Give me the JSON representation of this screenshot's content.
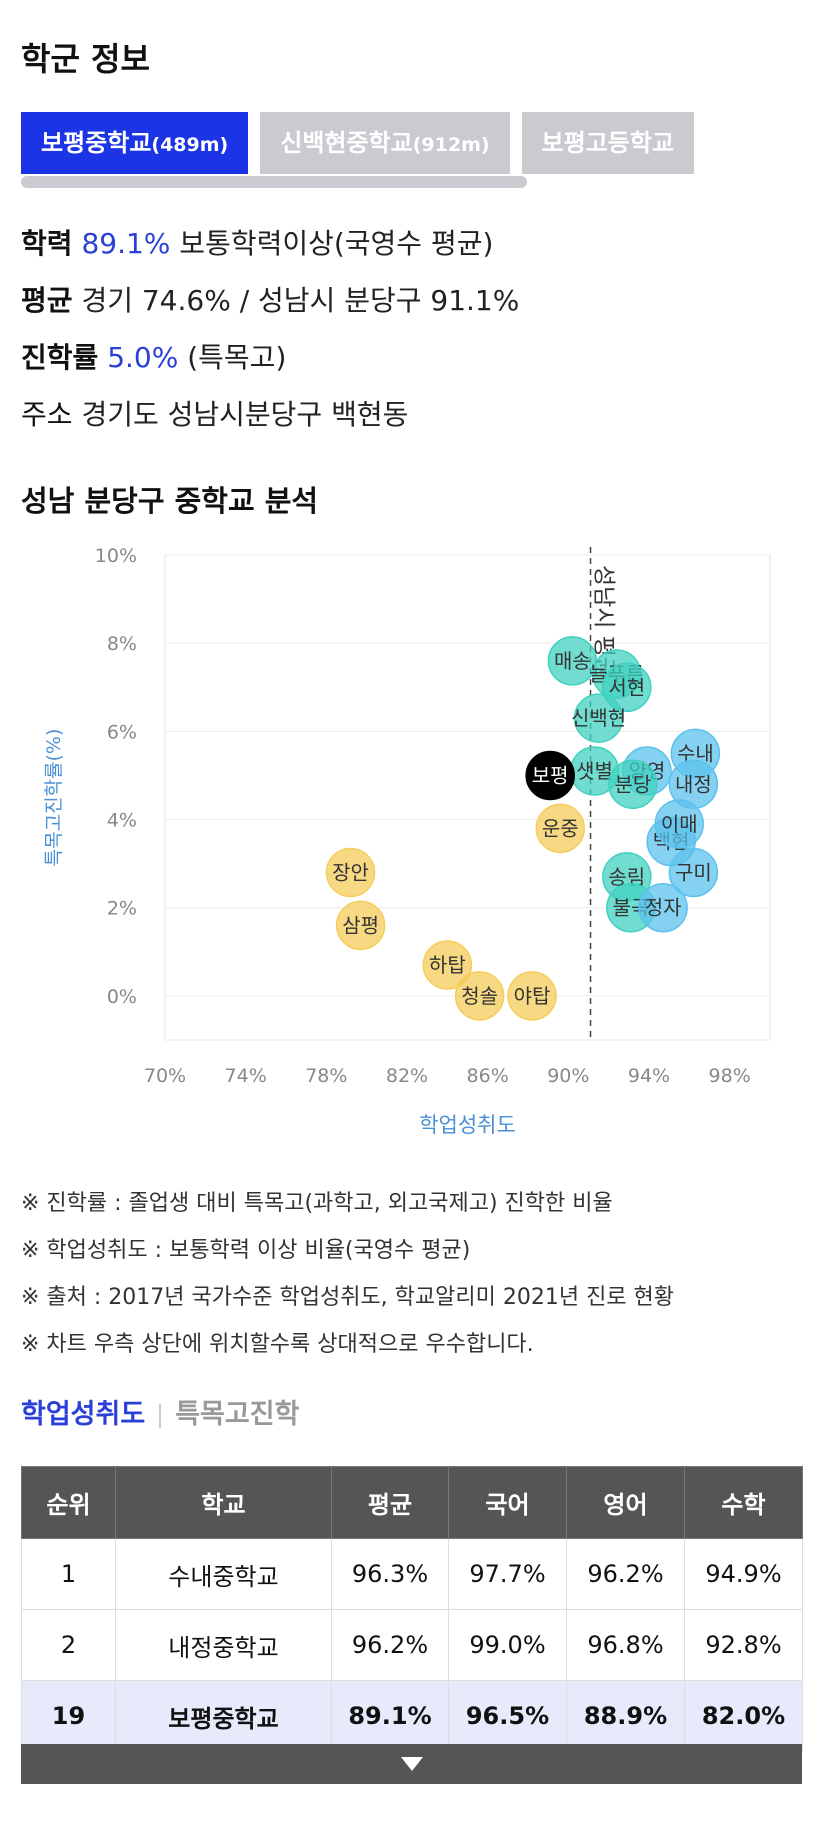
{
  "page_title": "학군 정보",
  "school_tabs": [
    {
      "name": "보평중학교",
      "dist": "(489m)",
      "active": true
    },
    {
      "name": "신백현중학교",
      "dist": "(912m)",
      "active": false
    },
    {
      "name": "보평고등학교",
      "dist": "",
      "active": false
    }
  ],
  "info": {
    "academic": {
      "label": "학력",
      "value": "89.1%",
      "desc": "보통학력이상(국영수 평균)"
    },
    "average": {
      "label": "평균",
      "text": "경기 74.6% / 성남시 분당구 91.1%"
    },
    "advancement": {
      "label": "진학률",
      "value": "5.0%",
      "desc": "(특목고)"
    },
    "address": {
      "label": "주소",
      "text": "경기도 성남시분당구 백현동"
    }
  },
  "section_title": "성남 분당구 중학교 분석",
  "chart_data": {
    "type": "scatter",
    "xlabel": "학업성취도",
    "ylabel": "특목고진학률(%)",
    "xlim": [
      70,
      100
    ],
    "ylim": [
      -1,
      10
    ],
    "x_ticks": [
      70,
      74,
      78,
      82,
      86,
      90,
      94,
      98
    ],
    "x_tick_labels": [
      "70%",
      "74%",
      "78%",
      "82%",
      "86%",
      "90%",
      "94%",
      "98%"
    ],
    "y_ticks": [
      0,
      2,
      4,
      6,
      8,
      10
    ],
    "y_tick_labels": [
      "0%",
      "2%",
      "4%",
      "6%",
      "8%",
      "10%"
    ],
    "reference_line": {
      "x": 91.1,
      "label": "성남시 평균"
    },
    "colors": {
      "low": "#f6cc5a",
      "mid": "#40d1c0",
      "high": "#5cc2ec",
      "selected": "#000000"
    },
    "points": [
      {
        "label": "장안",
        "x": 79.2,
        "y": 2.8,
        "group": "low"
      },
      {
        "label": "삼평",
        "x": 79.7,
        "y": 1.6,
        "group": "low"
      },
      {
        "label": "하탑",
        "x": 84.0,
        "y": 0.7,
        "group": "low"
      },
      {
        "label": "청솔",
        "x": 85.6,
        "y": 0.0,
        "group": "low"
      },
      {
        "label": "야탑",
        "x": 88.2,
        "y": 0.0,
        "group": "low"
      },
      {
        "label": "운중",
        "x": 89.6,
        "y": 3.8,
        "group": "low"
      },
      {
        "label": "매송",
        "x": 90.2,
        "y": 7.6,
        "group": "mid"
      },
      {
        "label": "늘푸른",
        "x": 92.4,
        "y": 7.3,
        "group": "mid"
      },
      {
        "label": "서현",
        "x": 92.9,
        "y": 7.0,
        "group": "mid"
      },
      {
        "label": "신백현",
        "x": 91.5,
        "y": 6.3,
        "group": "mid"
      },
      {
        "label": "샛별",
        "x": 91.3,
        "y": 5.1,
        "group": "mid"
      },
      {
        "label": "양영",
        "x": 93.9,
        "y": 5.1,
        "group": "high"
      },
      {
        "label": "분당",
        "x": 93.2,
        "y": 4.8,
        "group": "mid"
      },
      {
        "label": "백현",
        "x": 95.1,
        "y": 3.5,
        "group": "high"
      },
      {
        "label": "송림",
        "x": 92.9,
        "y": 2.7,
        "group": "mid"
      },
      {
        "label": "불곡",
        "x": 93.1,
        "y": 2.0,
        "group": "mid"
      },
      {
        "label": "정자",
        "x": 94.7,
        "y": 2.0,
        "group": "high"
      },
      {
        "label": "수내",
        "x": 96.3,
        "y": 5.5,
        "group": "high"
      },
      {
        "label": "내정",
        "x": 96.2,
        "y": 4.8,
        "group": "high"
      },
      {
        "label": "이매",
        "x": 95.5,
        "y": 3.9,
        "group": "high"
      },
      {
        "label": "구미",
        "x": 96.2,
        "y": 2.8,
        "group": "high"
      },
      {
        "label": "보평",
        "x": 89.1,
        "y": 5.0,
        "group": "selected"
      }
    ]
  },
  "notes": [
    "※ 진학률 : 졸업생 대비 특목고(과학고, 외고국제고) 진학한 비율",
    "※ 학업성취도 : 보통학력 이상 비율(국영수 평균)",
    "※ 출처 : 2017년 국가수준 학업성취도, 학교알리미 2021년 진로 현황",
    "※ 차트 우측 상단에 위치할수록 상대적으로 우수합니다."
  ],
  "sub_tabs": {
    "active": "학업성취도",
    "inactive": "특목고진학"
  },
  "table": {
    "headers": [
      "순위",
      "학교",
      "평균",
      "국어",
      "영어",
      "수학"
    ],
    "rows": [
      {
        "rank": "1",
        "school": "수내중학교",
        "avg": "96.3%",
        "kor": "97.7%",
        "eng": "96.2%",
        "math": "94.9%"
      },
      {
        "rank": "2",
        "school": "내정중학교",
        "avg": "96.2%",
        "kor": "99.0%",
        "eng": "96.8%",
        "math": "92.8%"
      },
      {
        "rank": "19",
        "school": "보평중학교",
        "avg": "89.1%",
        "kor": "96.5%",
        "eng": "88.9%",
        "math": "82.0%"
      }
    ]
  }
}
